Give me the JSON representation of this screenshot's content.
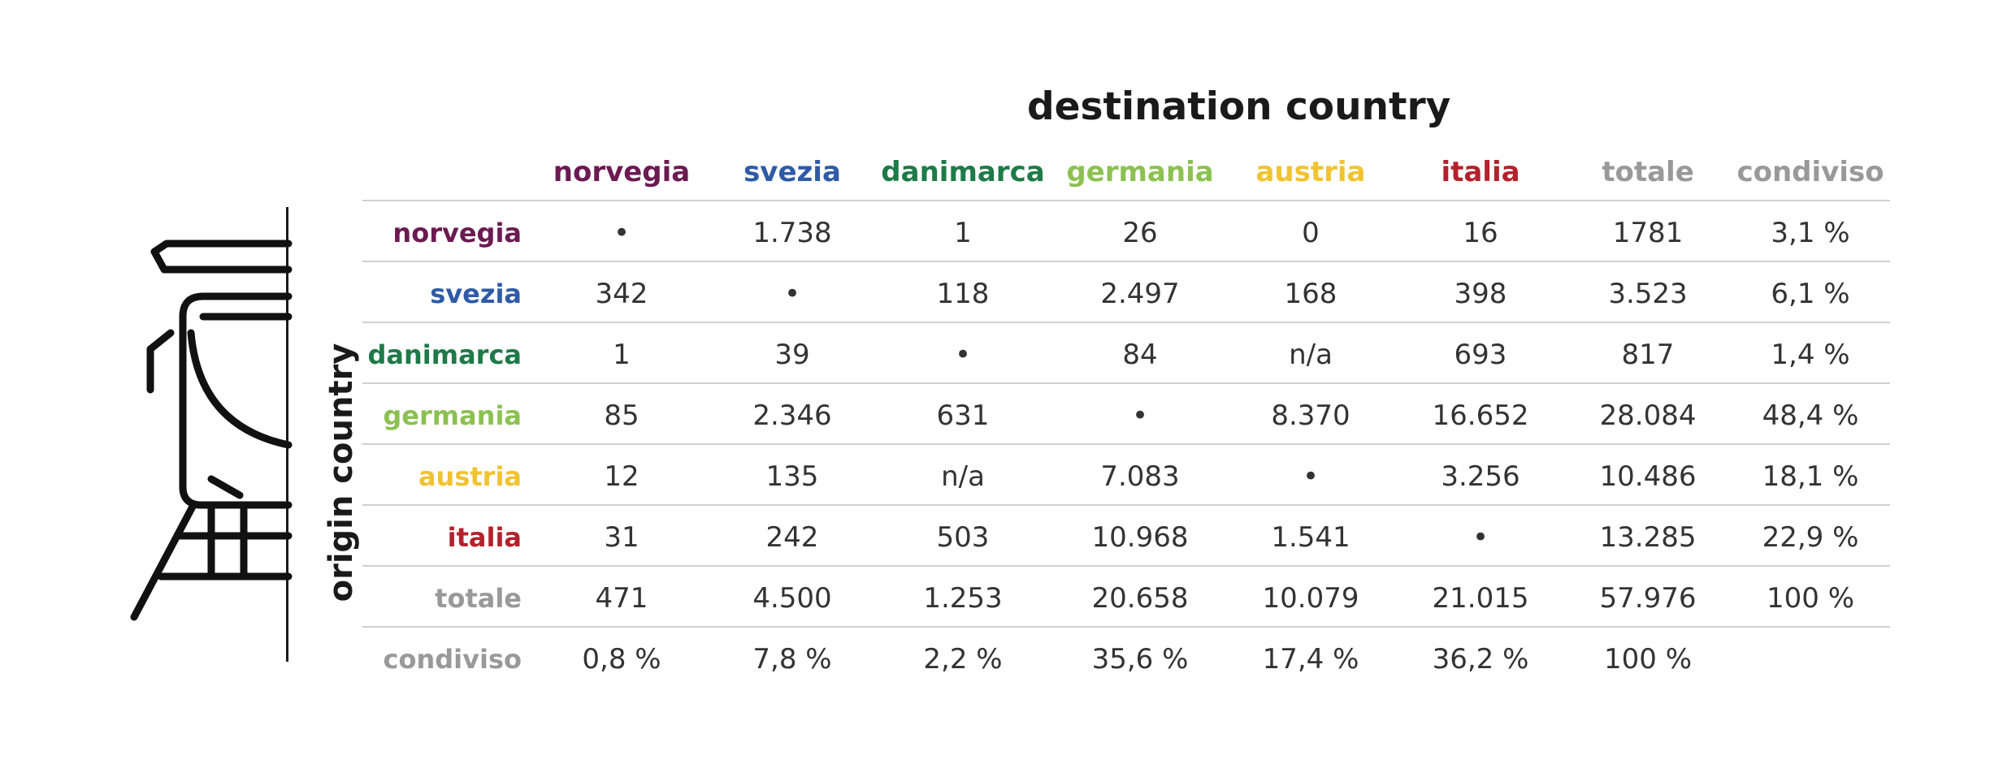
{
  "chart_data": {
    "type": "table",
    "title": "destination country",
    "ylabel": "origin country",
    "columns": [
      {
        "label": "norvegia",
        "color": "#6b1a52"
      },
      {
        "label": "svezia",
        "color": "#2f5aa6"
      },
      {
        "label": "danimarca",
        "color": "#1e7a47"
      },
      {
        "label": "germania",
        "color": "#8cc152"
      },
      {
        "label": "austria",
        "color": "#f0c330"
      },
      {
        "label": "italia",
        "color": "#b3222c"
      },
      {
        "label": "totale",
        "color": "#999999"
      },
      {
        "label": "condiviso",
        "color": "#999999"
      }
    ],
    "rows": [
      {
        "label": "norvegia",
        "color": "#6b1a52",
        "values": [
          "•",
          "1.738",
          "1",
          "26",
          "0",
          "16",
          "1781",
          "3,1 %"
        ]
      },
      {
        "label": "svezia",
        "color": "#2f5aa6",
        "values": [
          "342",
          "•",
          "118",
          "2.497",
          "168",
          "398",
          "3.523",
          "6,1 %"
        ]
      },
      {
        "label": "danimarca",
        "color": "#1e7a47",
        "values": [
          "1",
          "39",
          "•",
          "84",
          "n/a",
          "693",
          "817",
          "1,4 %"
        ]
      },
      {
        "label": "germania",
        "color": "#8cc152",
        "values": [
          "85",
          "2.346",
          "631",
          "•",
          "8.370",
          "16.652",
          "28.084",
          "48,4 %"
        ]
      },
      {
        "label": "austria",
        "color": "#f0c330",
        "values": [
          "12",
          "135",
          "n/a",
          "7.083",
          "•",
          "3.256",
          "10.486",
          "18,1 %"
        ]
      },
      {
        "label": "italia",
        "color": "#b3222c",
        "values": [
          "31",
          "242",
          "503",
          "10.968",
          "1.541",
          "•",
          "13.285",
          "22,9 %"
        ]
      },
      {
        "label": "totale",
        "color": "#999999",
        "values": [
          "471",
          "4.500",
          "1.253",
          "20.658",
          "10.079",
          "21.015",
          "57.976",
          "100 %"
        ]
      },
      {
        "label": "condiviso",
        "color": "#999999",
        "values": [
          "0,8 %",
          "7,8 %",
          "2,2 %",
          "35,6 %",
          "17,4 %",
          "36,2 %",
          "100 %",
          ""
        ]
      }
    ]
  },
  "icon": "train-icon"
}
